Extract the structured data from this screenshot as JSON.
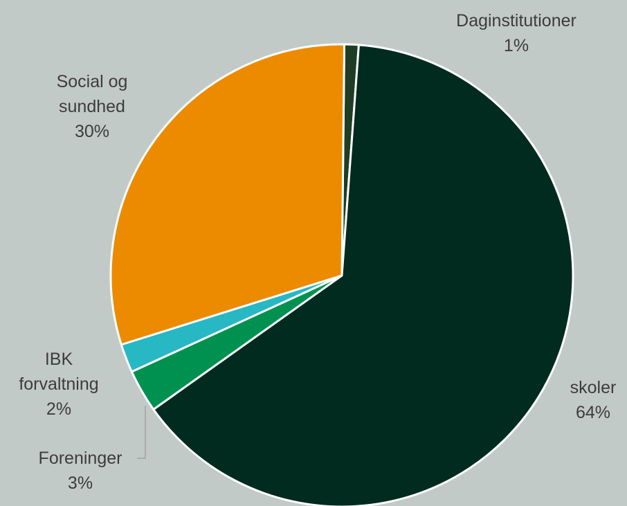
{
  "chart_data": {
    "type": "pie",
    "slices": [
      {
        "name": "Daginstitutioner",
        "value": 1,
        "value_label": "1%",
        "color": "#1f3d24"
      },
      {
        "name": "skoler",
        "value": 64,
        "value_label": "64%",
        "color": "#002b1e"
      },
      {
        "name": "Foreninger",
        "value": 3,
        "value_label": "3%",
        "color": "#009150"
      },
      {
        "name": "IBK forvaltning",
        "value": 2,
        "value_label": "2%",
        "color": "#27b8c4"
      },
      {
        "name": "Social og sundhed",
        "value": 30,
        "value_label": "30%",
        "color": "#ec8b00"
      }
    ],
    "label_lines": {
      "Daginstitutioner": [
        "Daginstitutioner"
      ],
      "skoler": [
        "skoler"
      ],
      "Foreninger": [
        "Foreninger"
      ],
      "IBK forvaltning": [
        "IBK",
        "forvaltning"
      ],
      "Social og sundhed": [
        "Social og",
        "sundhed"
      ]
    }
  },
  "colors": {
    "background": "#c2cac8",
    "slice_border": "#ffffff",
    "label_text": "#3c3c3c"
  }
}
